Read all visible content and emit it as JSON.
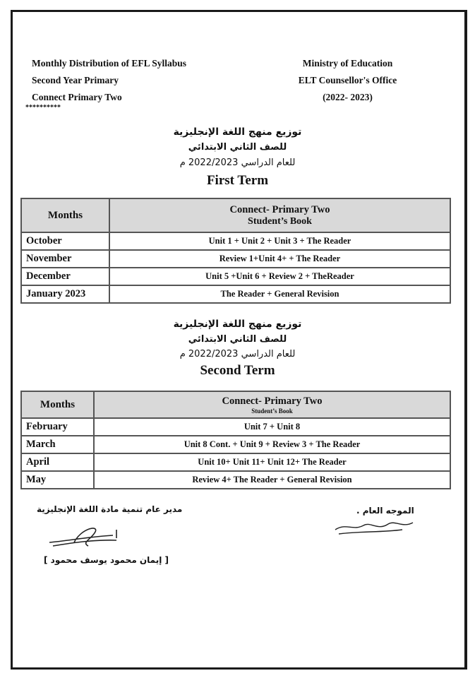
{
  "header_left": [
    "Monthly Distribution of EFL Syllabus",
    "Second Year Primary",
    "Connect Primary Two"
  ],
  "stars": "**********",
  "header_right": [
    "Ministry of Education",
    "ELT Counsellor's Office",
    "(2022- 2023)"
  ],
  "arabic_title": [
    "توزيع منهج اللغة الإنجليزية",
    "للصف الثاني الابتدائي",
    "للعام الدراسي  2022/2023 م"
  ],
  "first_term": {
    "title": "First Term",
    "col_months": "Months",
    "col_book_1": "Connect- Primary Two",
    "col_book_2": "Student’s Book",
    "rows": [
      {
        "month": "October",
        "content": "Unit 1  + Unit 2 + Unit 3 + The Reader"
      },
      {
        "month": "November",
        "content": "Review 1+Unit 4+ + The Reader"
      },
      {
        "month": "December",
        "content": "Unit 5 +Unit 6 + Review 2 + TheReader"
      },
      {
        "month": "January 2023",
        "content": "The Reader + General Revision"
      }
    ]
  },
  "second_term": {
    "title": "Second Term",
    "col_months": "Months",
    "col_book_1": "Connect- Primary Two",
    "col_book_2": "Student’s Book",
    "rows": [
      {
        "month": "February",
        "content": "Unit 7 + Unit 8"
      },
      {
        "month": "March",
        "content": "Unit 8 Cont. + Unit 9 + Review 3 + The Reader"
      },
      {
        "month": "April",
        "content": "Unit 10+ Unit 11+ Unit 12+ The Reader"
      },
      {
        "month": "May",
        "content": "Review 4+ The Reader + General Revision"
      }
    ]
  },
  "signatures": {
    "left_title": "مدير عام تنمية مادة اللغة الإنجليزية",
    "left_name": "[ إيمان محمود يوسف محمود ]",
    "right_title": "الموجه العام ."
  }
}
